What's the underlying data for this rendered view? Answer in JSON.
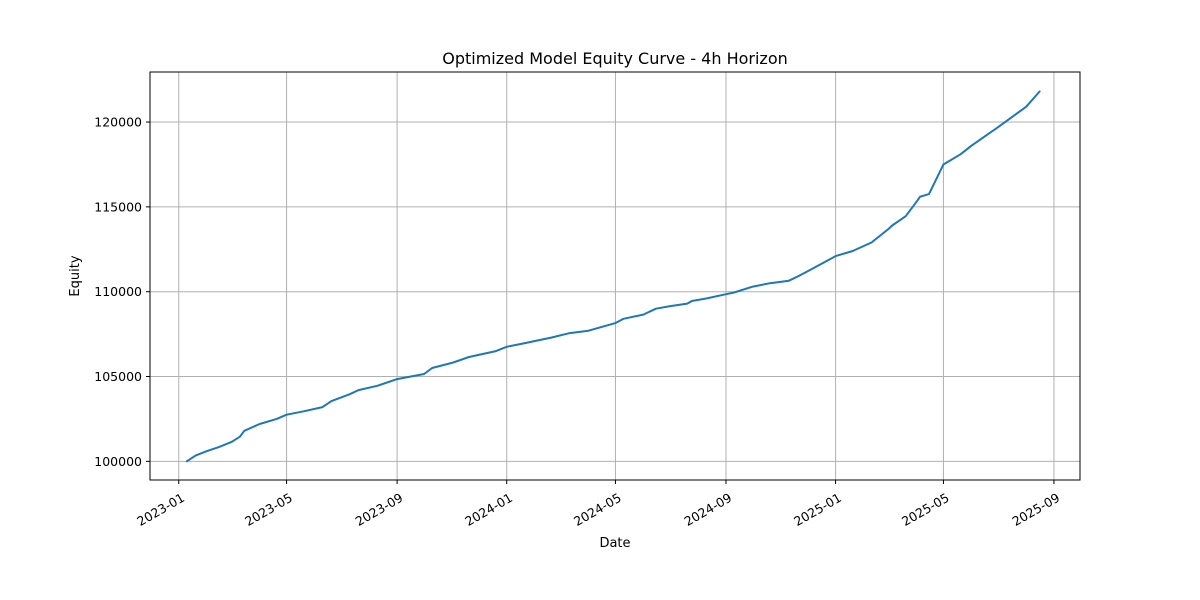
{
  "chart_data": {
    "type": "line",
    "title": "Optimized Model Equity Curve - 4h Horizon",
    "xlabel": "Date",
    "ylabel": "Equity",
    "x_ticks": [
      "2023-01",
      "2023-05",
      "2023-09",
      "2024-01",
      "2024-05",
      "2024-09",
      "2025-01",
      "2025-05",
      "2025-09"
    ],
    "y_ticks": [
      100000,
      105000,
      110000,
      115000,
      120000
    ],
    "y_tick_labels": [
      "100000",
      "105000",
      "110000",
      "115000",
      "120000"
    ],
    "xlim": [
      "2022-11-30",
      "2025-09-30"
    ],
    "ylim": [
      98900,
      122950
    ],
    "grid": true,
    "line_color": "#1f77b4",
    "series": [
      {
        "name": "",
        "x": [
          "2023-01-10",
          "2023-01-20",
          "2023-02-01",
          "2023-02-15",
          "2023-03-01",
          "2023-03-10",
          "2023-03-15",
          "2023-04-01",
          "2023-04-20",
          "2023-05-01",
          "2023-05-20",
          "2023-06-10",
          "2023-06-20",
          "2023-07-10",
          "2023-07-20",
          "2023-08-10",
          "2023-09-01",
          "2023-10-01",
          "2023-10-10",
          "2023-11-01",
          "2023-11-20",
          "2023-12-20",
          "2024-01-01",
          "2024-01-20",
          "2024-02-20",
          "2024-03-10",
          "2024-04-01",
          "2024-05-01",
          "2024-05-10",
          "2024-06-01",
          "2024-06-15",
          "2024-07-01",
          "2024-07-20",
          "2024-07-25",
          "2024-08-10",
          "2024-09-01",
          "2024-09-10",
          "2024-10-01",
          "2024-10-20",
          "2024-11-10",
          "2024-11-20",
          "2024-12-01",
          "2024-12-20",
          "2025-01-01",
          "2025-01-20",
          "2025-02-10",
          "2025-03-01",
          "2025-03-05",
          "2025-03-20",
          "2025-04-01",
          "2025-04-05",
          "2025-04-15",
          "2025-05-01",
          "2025-05-20",
          "2025-06-01",
          "2025-06-20",
          "2025-07-01",
          "2025-08-01",
          "2025-08-16"
        ],
        "y": [
          100000,
          100350,
          100600,
          100850,
          101150,
          101450,
          101800,
          102200,
          102500,
          102750,
          102950,
          103200,
          103550,
          103950,
          104200,
          104450,
          104850,
          105150,
          105500,
          105800,
          106150,
          106500,
          106750,
          106950,
          107300,
          107550,
          107700,
          108150,
          108400,
          108650,
          109000,
          109150,
          109300,
          109450,
          109600,
          109850,
          109950,
          110300,
          110500,
          110650,
          110900,
          111200,
          111750,
          112100,
          112400,
          112900,
          113700,
          113900,
          114450,
          115300,
          115600,
          115750,
          117500,
          118100,
          118600,
          119300,
          119700,
          120900,
          121800
        ]
      }
    ]
  }
}
